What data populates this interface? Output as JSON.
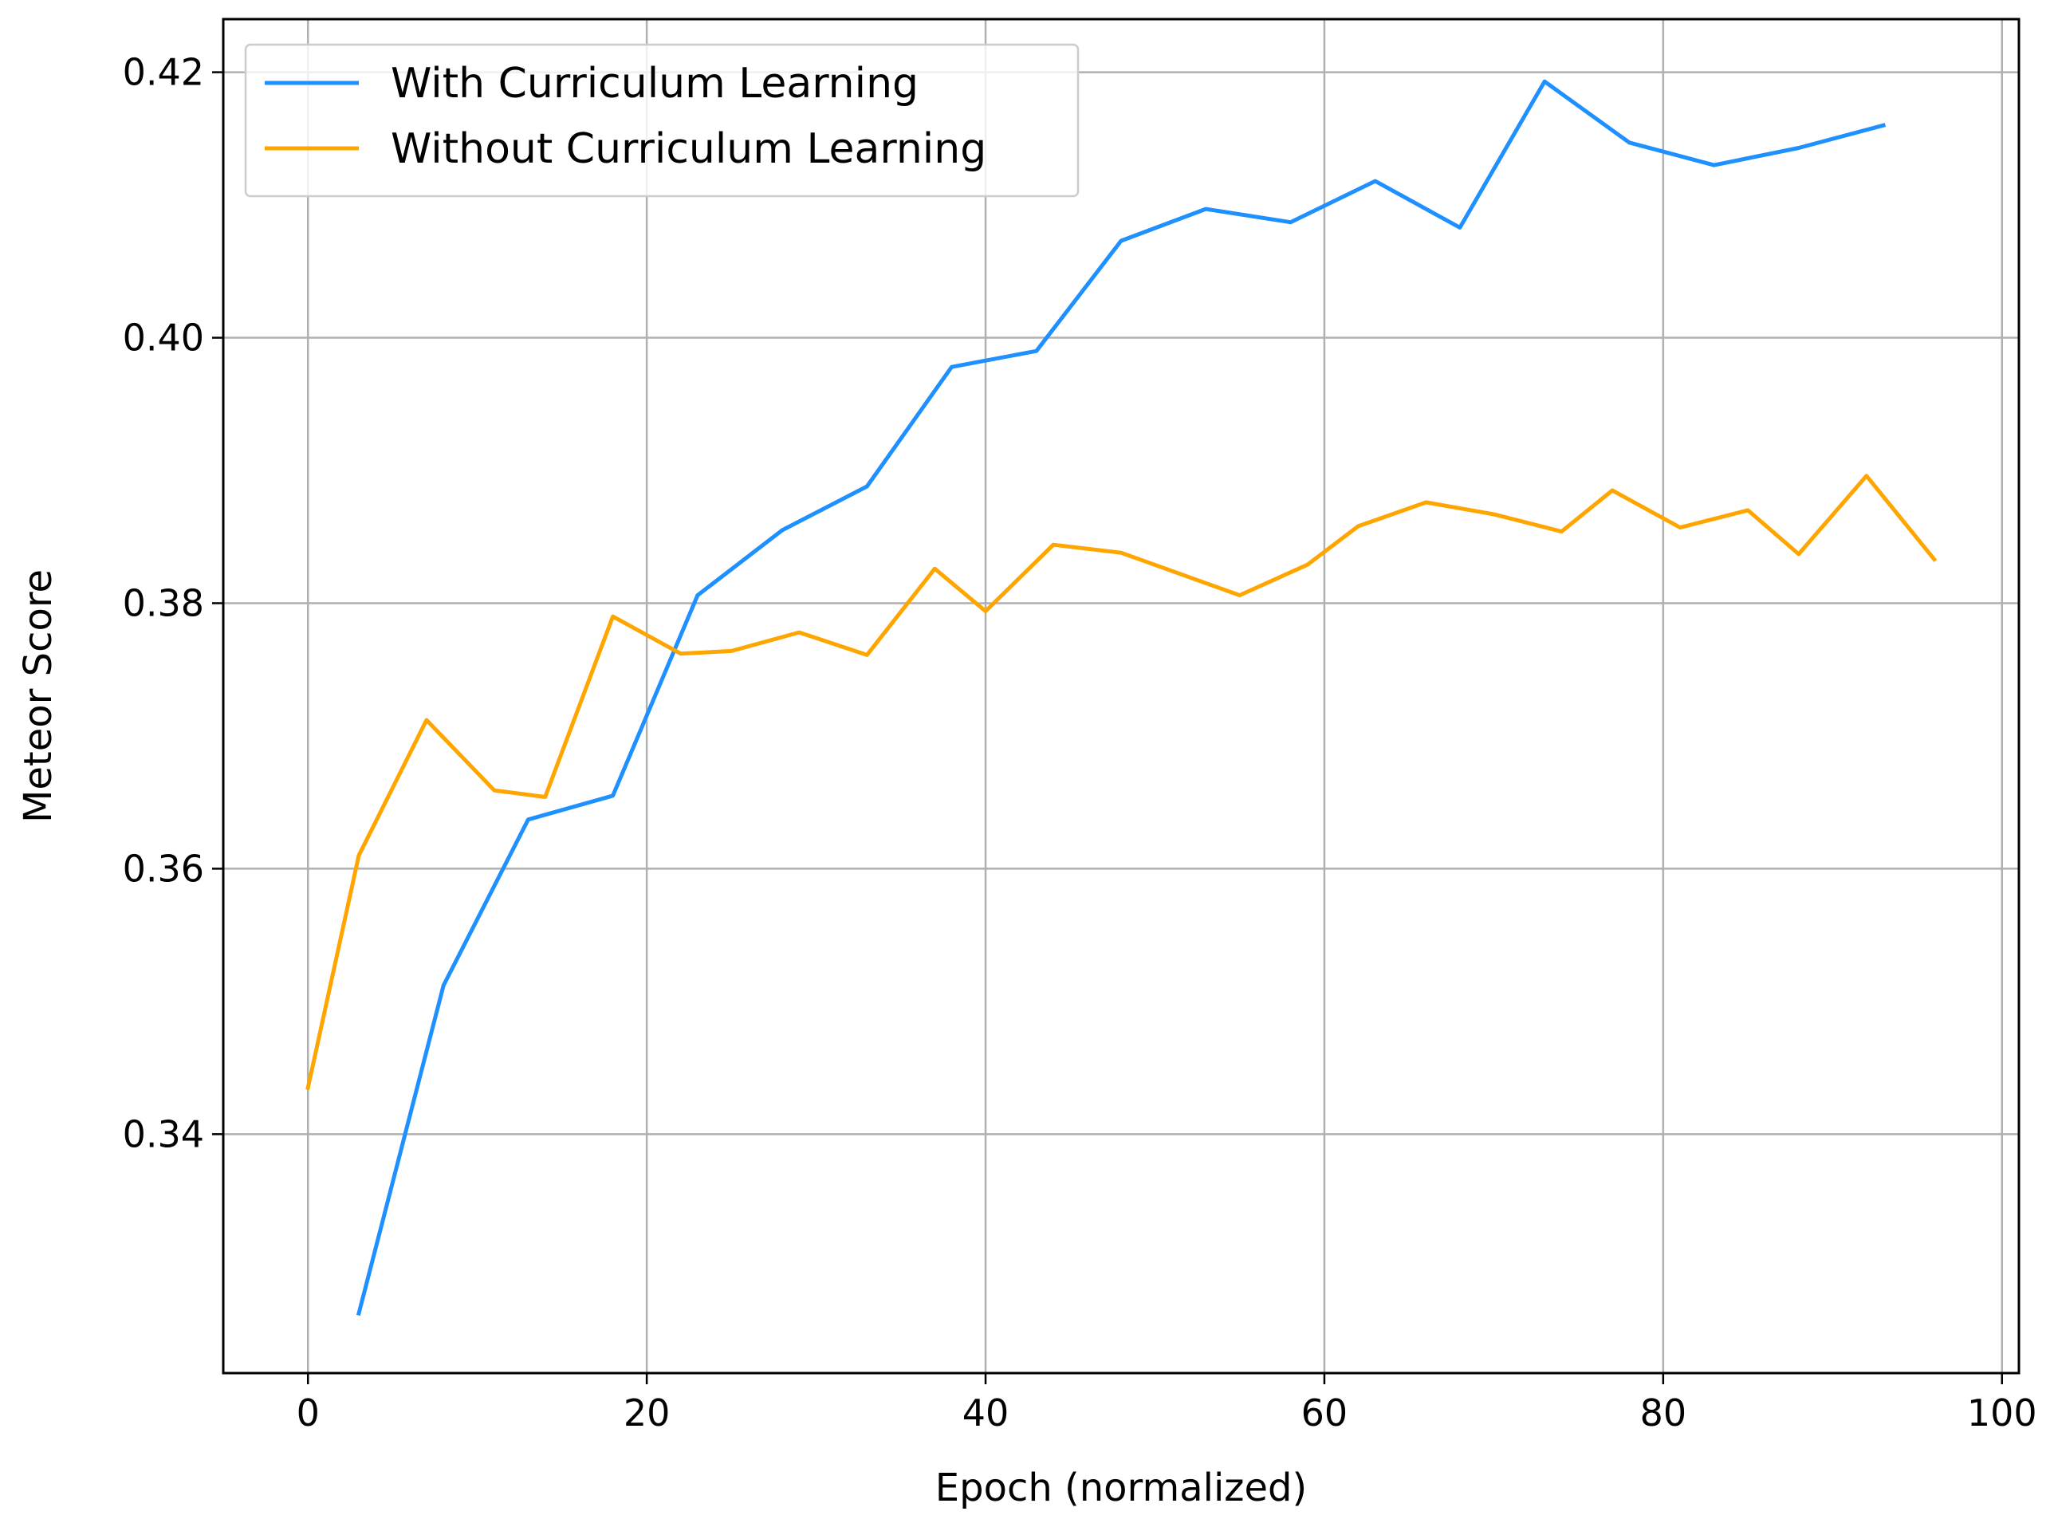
{
  "chart_data": {
    "type": "line",
    "title": "",
    "xlabel": "Epoch (normalized)",
    "ylabel": "Meteor Score",
    "xlim": [
      -5,
      101
    ],
    "ylim": [
      0.322,
      0.424
    ],
    "xticks": [
      0,
      20,
      40,
      60,
      80,
      100
    ],
    "xtick_labels": [
      "0",
      "20",
      "40",
      "60",
      "80",
      "100"
    ],
    "yticks": [
      0.34,
      0.36,
      0.38,
      0.4,
      0.42
    ],
    "ytick_labels": [
      "0.34",
      "0.36",
      "0.38",
      "0.40",
      "0.42"
    ],
    "grid": true,
    "legend_position": "top-left",
    "series": [
      {
        "name": "With Curriculum Learning",
        "color": "#1e90ff",
        "x": [
          3,
          8,
          13,
          18,
          23,
          28,
          33,
          38,
          43,
          48,
          53,
          58,
          63,
          68,
          73,
          78,
          83,
          88,
          93
        ],
        "y": [
          0.3265,
          0.3512,
          0.3637,
          0.3655,
          0.3806,
          0.3855,
          0.3888,
          0.3978,
          0.399,
          0.4073,
          0.4097,
          0.4087,
          0.4118,
          0.4083,
          0.4193,
          0.4147,
          0.413,
          0.4143,
          0.416
        ]
      },
      {
        "name": "Without Curriculum Learning",
        "color": "#ffa500",
        "x": [
          0,
          3,
          7,
          11,
          14,
          18,
          22,
          25,
          29,
          33,
          37,
          40,
          44,
          48,
          55,
          59,
          62,
          66,
          70,
          74,
          77,
          81,
          85,
          88,
          92,
          96
        ],
        "y": [
          0.3435,
          0.361,
          0.3712,
          0.3659,
          0.3654,
          0.379,
          0.3762,
          0.3764,
          0.3778,
          0.3761,
          0.3826,
          0.3794,
          0.3844,
          0.3838,
          0.3806,
          0.3829,
          0.3858,
          0.3876,
          0.3867,
          0.3854,
          0.3885,
          0.3857,
          0.387,
          0.3837,
          0.3896,
          0.3833
        ]
      }
    ]
  }
}
